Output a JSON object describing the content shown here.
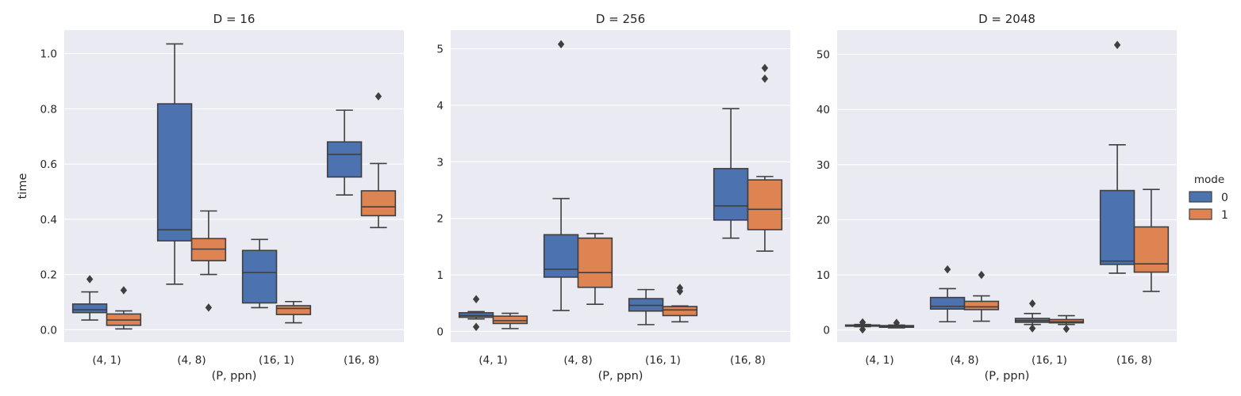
{
  "colors": {
    "panel_background": "#eaeaf2",
    "grid": "#ffffff",
    "line": "#3f3f3f",
    "series": [
      "#4c72b0",
      "#dd8452"
    ]
  },
  "ylabel": "time",
  "xlabel": "(P, ppn)",
  "legend": {
    "title": "mode",
    "labels": [
      "0",
      "1"
    ],
    "placement": "right-center"
  },
  "chart_data": [
    {
      "type": "box",
      "title": "D = 16",
      "xlabel": "(P, ppn)",
      "ylabel": "time",
      "categories": [
        "(4, 1)",
        "(4, 8)",
        "(16, 1)",
        "(16, 8)"
      ],
      "ylim": [
        -0.045,
        1.085
      ],
      "yticks": [
        0.0,
        0.2,
        0.4,
        0.6,
        0.8,
        1.0
      ],
      "ytick_labels": [
        "0.0",
        "0.2",
        "0.4",
        "0.6",
        "0.8",
        "1.0"
      ],
      "grid": true,
      "series": [
        {
          "name": "0",
          "boxes": [
            {
              "whislo": 0.035,
              "q1": 0.062,
              "med": 0.072,
              "q3": 0.093,
              "whishi": 0.137,
              "fliers": [
                0.183
              ]
            },
            {
              "whislo": 0.165,
              "q1": 0.322,
              "med": 0.362,
              "q3": 0.818,
              "whishi": 1.035,
              "fliers": []
            },
            {
              "whislo": 0.08,
              "q1": 0.097,
              "med": 0.207,
              "q3": 0.287,
              "whishi": 0.327,
              "fliers": []
            },
            {
              "whislo": 0.488,
              "q1": 0.553,
              "med": 0.635,
              "q3": 0.68,
              "whishi": 0.795,
              "fliers": []
            }
          ]
        },
        {
          "name": "1",
          "boxes": [
            {
              "whislo": 0.003,
              "q1": 0.016,
              "med": 0.035,
              "q3": 0.057,
              "whishi": 0.068,
              "fliers": [
                0.143
              ]
            },
            {
              "whislo": 0.2,
              "q1": 0.25,
              "med": 0.292,
              "q3": 0.33,
              "whishi": 0.43,
              "fliers": [
                0.08
              ]
            },
            {
              "whislo": 0.025,
              "q1": 0.055,
              "med": 0.077,
              "q3": 0.087,
              "whishi": 0.102,
              "fliers": []
            },
            {
              "whislo": 0.37,
              "q1": 0.413,
              "med": 0.445,
              "q3": 0.503,
              "whishi": 0.602,
              "fliers": [
                0.845
              ]
            }
          ]
        }
      ]
    },
    {
      "type": "box",
      "title": "D = 256",
      "xlabel": "(P, ppn)",
      "ylabel": "",
      "categories": [
        "(4, 1)",
        "(4, 8)",
        "(16, 1)",
        "(16, 8)"
      ],
      "ylim": [
        -0.19,
        5.33
      ],
      "yticks": [
        0,
        1,
        2,
        3,
        4,
        5
      ],
      "ytick_labels": [
        "0",
        "1",
        "2",
        "3",
        "4",
        "5"
      ],
      "grid": true,
      "series": [
        {
          "name": "0",
          "boxes": [
            {
              "whislo": 0.22,
              "q1": 0.25,
              "med": 0.28,
              "q3": 0.33,
              "whishi": 0.35,
              "fliers": [
                0.57,
                0.08
              ]
            },
            {
              "whislo": 0.37,
              "q1": 0.96,
              "med": 1.1,
              "q3": 1.71,
              "whishi": 2.35,
              "fliers": [
                5.08
              ]
            },
            {
              "whislo": 0.12,
              "q1": 0.36,
              "med": 0.46,
              "q3": 0.58,
              "whishi": 0.74,
              "fliers": []
            },
            {
              "whislo": 1.65,
              "q1": 1.97,
              "med": 2.22,
              "q3": 2.88,
              "whishi": 3.94,
              "fliers": []
            }
          ]
        },
        {
          "name": "1",
          "boxes": [
            {
              "whislo": 0.05,
              "q1": 0.14,
              "med": 0.19,
              "q3": 0.27,
              "whishi": 0.32,
              "fliers": []
            },
            {
              "whislo": 0.48,
              "q1": 0.78,
              "med": 1.04,
              "q3": 1.65,
              "whishi": 1.73,
              "fliers": []
            },
            {
              "whislo": 0.17,
              "q1": 0.28,
              "med": 0.38,
              "q3": 0.44,
              "whishi": 0.45,
              "fliers": [
                0.71,
                0.77
              ]
            },
            {
              "whislo": 1.42,
              "q1": 1.8,
              "med": 2.16,
              "q3": 2.68,
              "whishi": 2.74,
              "fliers": [
                4.47,
                4.66
              ]
            }
          ]
        }
      ]
    },
    {
      "type": "box",
      "title": "D = 2048",
      "xlabel": "(P, ppn)",
      "ylabel": "",
      "categories": [
        "(4, 1)",
        "(4, 8)",
        "(16, 1)",
        "(16, 8)"
      ],
      "ylim": [
        -2.2,
        54.4
      ],
      "yticks": [
        0,
        10,
        20,
        30,
        40,
        50
      ],
      "ytick_labels": [
        "0",
        "10",
        "20",
        "30",
        "40",
        "50"
      ],
      "grid": true,
      "series": [
        {
          "name": "0",
          "boxes": [
            {
              "whislo": 0.6,
              "q1": 0.7,
              "med": 0.8,
              "q3": 0.9,
              "whishi": 1.0,
              "fliers": [
                1.4,
                0.1
              ]
            },
            {
              "whislo": 1.5,
              "q1": 3.8,
              "med": 4.3,
              "q3": 5.9,
              "whishi": 7.5,
              "fliers": [
                11.0
              ]
            },
            {
              "whislo": 1.0,
              "q1": 1.4,
              "med": 1.7,
              "q3": 2.1,
              "whishi": 3.0,
              "fliers": [
                4.8,
                0.3
              ]
            },
            {
              "whislo": 10.3,
              "q1": 11.9,
              "med": 12.5,
              "q3": 25.3,
              "whishi": 33.6,
              "fliers": [
                51.7
              ]
            }
          ]
        },
        {
          "name": "1",
          "boxes": [
            {
              "whislo": 0.4,
              "q1": 0.5,
              "med": 0.65,
              "q3": 0.8,
              "whishi": 0.9,
              "fliers": [
                1.3
              ]
            },
            {
              "whislo": 1.6,
              "q1": 3.7,
              "med": 4.2,
              "q3": 5.2,
              "whishi": 6.2,
              "fliers": [
                10.0
              ]
            },
            {
              "whislo": 1.0,
              "q1": 1.3,
              "med": 1.5,
              "q3": 1.9,
              "whishi": 2.6,
              "fliers": [
                0.2
              ]
            },
            {
              "whislo": 7.0,
              "q1": 10.5,
              "med": 12.0,
              "q3": 18.7,
              "whishi": 25.5,
              "fliers": []
            }
          ]
        }
      ]
    }
  ]
}
